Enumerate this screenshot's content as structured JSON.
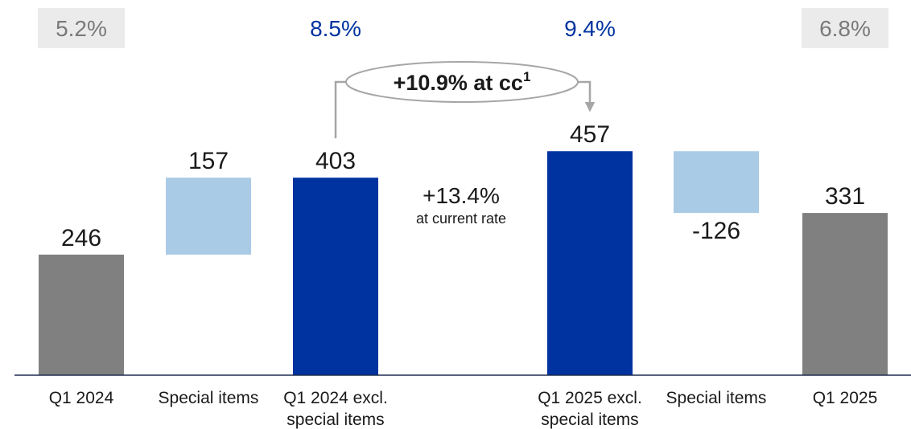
{
  "colors": {
    "grey_bar": "#808080",
    "light_blue_bar": "#a9cbe6",
    "dark_blue_bar": "#0033a0",
    "axis_line": "#1f2d4e",
    "grey_box": "#ebebeb",
    "grey_text": "#7a7a7a",
    "blue_text": "#0033a0",
    "connector": "#a6a6a6"
  },
  "chart_data": {
    "type": "bar",
    "subtype": "waterfall",
    "categories": [
      [
        "Q1 2024"
      ],
      [
        "Special items"
      ],
      [
        "Q1 2024 excl.",
        "special items"
      ],
      [],
      [
        "Q1 2025 excl.",
        "special items"
      ],
      [
        "Special items"
      ],
      [
        "Q1 2025"
      ]
    ],
    "bars": [
      {
        "label": "246",
        "start": 0,
        "end": 246,
        "kind": "total",
        "color_key": "grey_bar"
      },
      {
        "label": "157",
        "start": 246,
        "end": 403,
        "kind": "delta",
        "color_key": "light_blue_bar"
      },
      {
        "label": "403",
        "start": 0,
        "end": 403,
        "kind": "subtotal",
        "color_key": "dark_blue_bar"
      },
      null,
      {
        "label": "457",
        "start": 0,
        "end": 457,
        "kind": "subtotal",
        "color_key": "dark_blue_bar"
      },
      {
        "label": "-126",
        "start": 457,
        "end": 331,
        "kind": "delta",
        "color_key": "light_blue_bar"
      },
      {
        "label": "331",
        "start": 0,
        "end": 331,
        "kind": "total",
        "color_key": "grey_bar"
      }
    ],
    "margins": [
      {
        "slot": 0,
        "text": "5.2%",
        "style": "grey"
      },
      {
        "slot": 2,
        "text": "8.5%",
        "style": "blue"
      },
      {
        "slot": 4,
        "text": "9.4%",
        "style": "blue"
      },
      {
        "slot": 6,
        "text": "6.8%",
        "style": "grey"
      }
    ],
    "growth_cc": {
      "text": "+10.9% at cc",
      "sup": "1"
    },
    "growth_current": {
      "value": "+13.4%",
      "note": "at current rate"
    },
    "ylim": [
      0,
      500
    ],
    "grid": false
  }
}
